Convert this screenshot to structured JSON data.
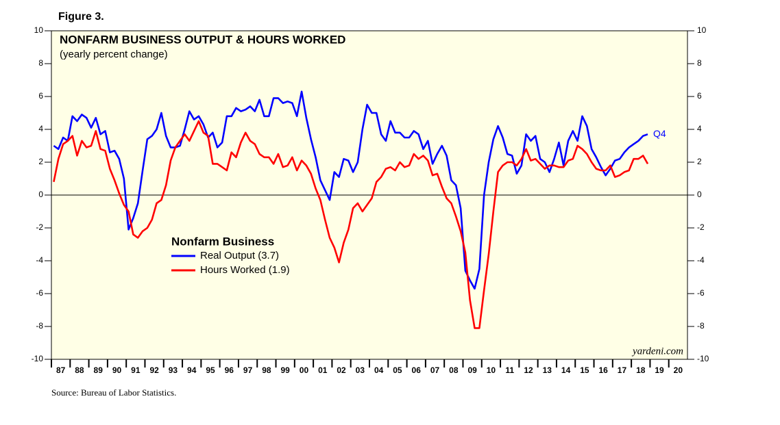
{
  "chart_data": {
    "type": "line",
    "figure_label": "Figure 3.",
    "title": "NONFARM BUSINESS OUTPUT & HOURS WORKED",
    "subtitle": "(yearly percent change)",
    "legend_title": "Nonfarm Business",
    "annotation": "Q4",
    "watermark": "yardeni.com",
    "source": "Source: Bureau of Labor Statistics.",
    "xlim": [
      1987,
      2021
    ],
    "ylim": [
      -10,
      10
    ],
    "y2lim": [
      -10,
      10
    ],
    "yticks": [
      -10,
      -8,
      -6,
      -4,
      -2,
      0,
      2,
      4,
      6,
      8,
      10
    ],
    "y2ticks": [
      -10,
      -8,
      -6,
      -4,
      -2,
      0,
      2,
      4,
      6,
      8,
      10
    ],
    "xticks": [
      {
        "value": 1987.5,
        "label": "87"
      },
      {
        "value": 1988.5,
        "label": "88"
      },
      {
        "value": 1989.5,
        "label": "89"
      },
      {
        "value": 1990.5,
        "label": "90"
      },
      {
        "value": 1991.5,
        "label": "91"
      },
      {
        "value": 1992.5,
        "label": "92"
      },
      {
        "value": 1993.5,
        "label": "93"
      },
      {
        "value": 1994.5,
        "label": "94"
      },
      {
        "value": 1995.5,
        "label": "95"
      },
      {
        "value": 1996.5,
        "label": "96"
      },
      {
        "value": 1997.5,
        "label": "97"
      },
      {
        "value": 1998.5,
        "label": "98"
      },
      {
        "value": 1999.5,
        "label": "99"
      },
      {
        "value": 2000.5,
        "label": "00"
      },
      {
        "value": 2001.5,
        "label": "01"
      },
      {
        "value": 2002.5,
        "label": "02"
      },
      {
        "value": 2003.5,
        "label": "03"
      },
      {
        "value": 2004.5,
        "label": "04"
      },
      {
        "value": 2005.5,
        "label": "05"
      },
      {
        "value": 2006.5,
        "label": "06"
      },
      {
        "value": 2007.5,
        "label": "07"
      },
      {
        "value": 2008.5,
        "label": "08"
      },
      {
        "value": 2009.5,
        "label": "09"
      },
      {
        "value": 2010.5,
        "label": "10"
      },
      {
        "value": 2011.5,
        "label": "11"
      },
      {
        "value": 2012.5,
        "label": "12"
      },
      {
        "value": 2013.5,
        "label": "13"
      },
      {
        "value": 2014.5,
        "label": "14"
      },
      {
        "value": 2015.5,
        "label": "15"
      },
      {
        "value": 2016.5,
        "label": "16"
      },
      {
        "value": 2017.5,
        "label": "17"
      },
      {
        "value": 2018.5,
        "label": "18"
      },
      {
        "value": 2019.5,
        "label": "19"
      },
      {
        "value": 2020.5,
        "label": "20"
      }
    ],
    "zero_line": true,
    "x": [
      1987.125,
      1987.375,
      1987.625,
      1987.875,
      1988.125,
      1988.375,
      1988.625,
      1988.875,
      1989.125,
      1989.375,
      1989.625,
      1989.875,
      1990.125,
      1990.375,
      1990.625,
      1990.875,
      1991.125,
      1991.375,
      1991.625,
      1991.875,
      1992.125,
      1992.375,
      1992.625,
      1992.875,
      1993.125,
      1993.375,
      1993.625,
      1993.875,
      1994.125,
      1994.375,
      1994.625,
      1994.875,
      1995.125,
      1995.375,
      1995.625,
      1995.875,
      1996.125,
      1996.375,
      1996.625,
      1996.875,
      1997.125,
      1997.375,
      1997.625,
      1997.875,
      1998.125,
      1998.375,
      1998.625,
      1998.875,
      1999.125,
      1999.375,
      1999.625,
      1999.875,
      2000.125,
      2000.375,
      2000.625,
      2000.875,
      2001.125,
      2001.375,
      2001.625,
      2001.875,
      2002.125,
      2002.375,
      2002.625,
      2002.875,
      2003.125,
      2003.375,
      2003.625,
      2003.875,
      2004.125,
      2004.375,
      2004.625,
      2004.875,
      2005.125,
      2005.375,
      2005.625,
      2005.875,
      2006.125,
      2006.375,
      2006.625,
      2006.875,
      2007.125,
      2007.375,
      2007.625,
      2007.875,
      2008.125,
      2008.375,
      2008.625,
      2008.875,
      2009.125,
      2009.375,
      2009.625,
      2009.875,
      2010.125,
      2010.375,
      2010.625,
      2010.875,
      2011.125,
      2011.375,
      2011.625,
      2011.875,
      2012.125,
      2012.375,
      2012.625,
      2012.875,
      2013.125,
      2013.375,
      2013.625,
      2013.875,
      2014.125,
      2014.375,
      2014.625,
      2014.875,
      2015.125,
      2015.375,
      2015.625,
      2015.875,
      2016.125,
      2016.375,
      2016.625,
      2016.875,
      2017.125,
      2017.375,
      2017.625,
      2017.875,
      2018.125,
      2018.375,
      2018.625,
      2018.875
    ],
    "series": [
      {
        "name": "Real Output (3.7)",
        "color": "#0000ff",
        "values": [
          3.0,
          2.8,
          3.5,
          3.3,
          4.8,
          4.5,
          4.9,
          4.7,
          4.1,
          4.7,
          3.7,
          3.9,
          2.6,
          2.7,
          2.2,
          1.0,
          -2.1,
          -1.4,
          -0.5,
          1.5,
          3.4,
          3.6,
          4.0,
          5.0,
          3.6,
          2.9,
          2.9,
          3.0,
          4.0,
          5.1,
          4.6,
          4.8,
          4.3,
          3.5,
          3.8,
          2.9,
          3.2,
          4.8,
          4.8,
          5.3,
          5.1,
          5.2,
          5.4,
          5.1,
          5.8,
          4.8,
          4.8,
          5.9,
          5.9,
          5.6,
          5.7,
          5.6,
          4.8,
          6.3,
          4.7,
          3.4,
          2.3,
          0.9,
          0.3,
          -0.3,
          1.4,
          1.1,
          2.2,
          2.1,
          1.4,
          2.0,
          4.0,
          5.5,
          5.0,
          5.0,
          3.7,
          3.3,
          4.5,
          3.8,
          3.8,
          3.5,
          3.5,
          3.9,
          3.7,
          2.8,
          3.3,
          1.9,
          2.5,
          3.0,
          2.4,
          0.9,
          0.6,
          -0.8,
          -4.6,
          -5.2,
          -5.7,
          -4.5,
          0.0,
          2.0,
          3.4,
          4.2,
          3.5,
          2.5,
          2.4,
          1.3,
          1.8,
          3.7,
          3.3,
          3.6,
          2.2,
          2.0,
          1.4,
          2.2,
          3.2,
          1.8,
          3.3,
          3.9,
          3.3,
          4.8,
          4.2,
          2.8,
          2.3,
          1.7,
          1.2,
          1.6,
          2.1,
          2.2,
          2.6,
          2.9,
          3.1,
          3.3,
          3.6,
          3.7
        ]
      },
      {
        "name": "Hours Worked (1.9)",
        "color": "#ff0000",
        "values": [
          0.8,
          2.2,
          3.1,
          3.3,
          3.6,
          2.4,
          3.3,
          2.9,
          3.0,
          3.9,
          2.8,
          2.7,
          1.6,
          0.9,
          0.1,
          -0.6,
          -1.0,
          -2.4,
          -2.6,
          -2.2,
          -2.0,
          -1.5,
          -0.5,
          -0.3,
          0.6,
          2.1,
          2.9,
          3.3,
          3.7,
          3.3,
          3.9,
          4.5,
          3.8,
          3.6,
          1.9,
          1.9,
          1.7,
          1.5,
          2.6,
          2.3,
          3.2,
          3.8,
          3.3,
          3.1,
          2.5,
          2.3,
          2.3,
          1.9,
          2.5,
          1.7,
          1.8,
          2.3,
          1.5,
          2.1,
          1.8,
          1.3,
          0.4,
          -0.3,
          -1.5,
          -2.6,
          -3.2,
          -4.1,
          -2.9,
          -2.1,
          -0.8,
          -0.5,
          -1.0,
          -0.6,
          -0.2,
          0.8,
          1.1,
          1.6,
          1.7,
          1.5,
          2.0,
          1.7,
          1.8,
          2.5,
          2.2,
          2.4,
          2.1,
          1.2,
          1.3,
          0.5,
          -0.2,
          -0.5,
          -1.3,
          -2.2,
          -3.5,
          -6.4,
          -8.1,
          -8.1,
          -5.8,
          -3.6,
          -1.0,
          1.4,
          1.8,
          2.0,
          2.0,
          1.8,
          2.2,
          2.8,
          2.1,
          2.2,
          1.9,
          1.6,
          1.8,
          1.8,
          1.7,
          1.7,
          2.1,
          2.2,
          3.0,
          2.8,
          2.5,
          2.0,
          1.6,
          1.5,
          1.5,
          1.8,
          1.1,
          1.2,
          1.4,
          1.5,
          2.2,
          2.2,
          2.4,
          1.9
        ]
      }
    ]
  }
}
